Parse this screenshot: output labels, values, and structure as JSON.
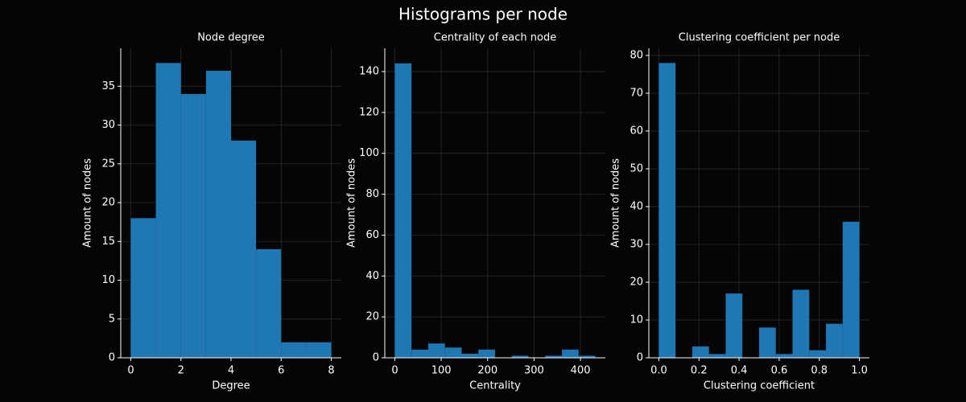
{
  "title": "Histograms per node",
  "chart_data": [
    {
      "type": "histogram",
      "title": "Node degree",
      "xlabel": "Degree",
      "ylabel": "Amount of nodes",
      "color": "#1f77b4",
      "grid": true,
      "bins": [
        0,
        1,
        2,
        3,
        4,
        5,
        6,
        7,
        8
      ],
      "values": [
        18,
        38,
        34,
        37,
        28,
        14,
        2,
        2
      ],
      "xlim": [
        -0.4,
        8.4
      ],
      "xticks": [
        0,
        2,
        4,
        6,
        8
      ],
      "ylim": [
        0,
        39.9
      ],
      "yticks": [
        0,
        5,
        10,
        15,
        20,
        25,
        30,
        35
      ]
    },
    {
      "type": "histogram",
      "title": "Centrality of each node",
      "xlabel": "Centrality",
      "ylabel": "Amount of nodes",
      "color": "#1f77b4",
      "grid": true,
      "bins": [
        0,
        36,
        72,
        108,
        144,
        180,
        216,
        252,
        288,
        324,
        360,
        396,
        432
      ],
      "values": [
        144,
        4,
        7,
        5,
        2,
        4,
        0,
        1,
        0,
        1,
        4,
        1
      ],
      "xlim": [
        -21.6,
        453.6
      ],
      "xticks": [
        0,
        100,
        200,
        300,
        400
      ],
      "ylim": [
        0,
        151.4
      ],
      "yticks": [
        0,
        20,
        40,
        60,
        80,
        100,
        120,
        140
      ]
    },
    {
      "type": "histogram",
      "title": "Clustering coefficient per node",
      "xlabel": "Clustering coefficient",
      "ylabel": "Amount of nodes",
      "color": "#1f77b4",
      "grid": true,
      "bins": [
        0,
        0.0833,
        0.1667,
        0.25,
        0.3333,
        0.4167,
        0.5,
        0.5833,
        0.6667,
        0.75,
        0.8333,
        0.9167,
        1
      ],
      "values": [
        78,
        0,
        3,
        1,
        17,
        0,
        8,
        1,
        18,
        2,
        9,
        36
      ],
      "xlim": [
        -0.05,
        1.05
      ],
      "xticks": [
        {
          "value": 0,
          "label": "0.0"
        },
        {
          "value": 0.2,
          "label": "0.2"
        },
        {
          "value": 0.4,
          "label": "0.4"
        },
        {
          "value": 0.6,
          "label": "0.6"
        },
        {
          "value": 0.8,
          "label": "0.8"
        },
        {
          "value": 1,
          "label": "1.0"
        }
      ],
      "ylim": [
        0,
        81.9
      ],
      "yticks": [
        0,
        10,
        20,
        30,
        40,
        50,
        60,
        70,
        80
      ]
    }
  ]
}
